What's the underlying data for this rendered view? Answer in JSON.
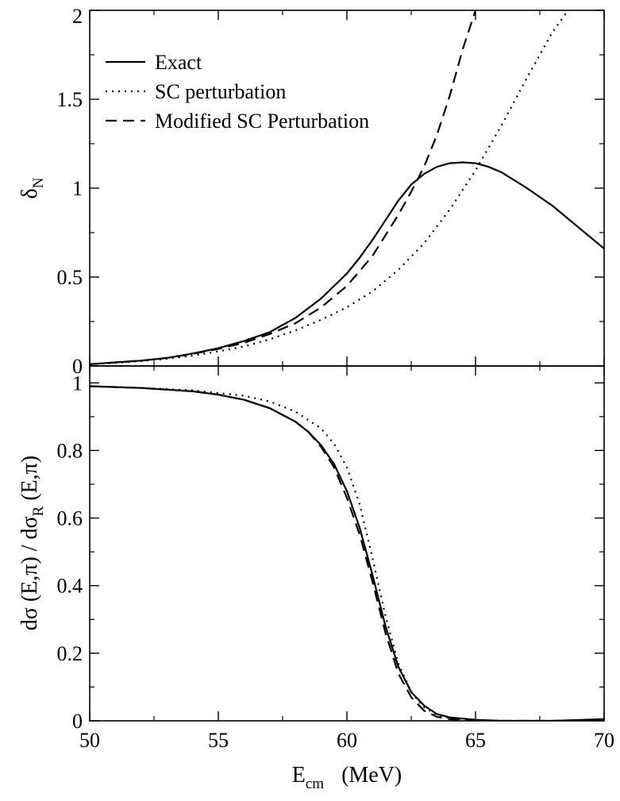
{
  "chart_data": [
    {
      "type": "line",
      "panel": "top",
      "xlabel": "",
      "ylabel": {
        "main": "δ",
        "sub": "N"
      },
      "xlim": [
        50,
        70
      ],
      "ylim": [
        0,
        2
      ],
      "yticks": [
        0,
        0.5,
        1,
        1.5,
        2
      ],
      "ytick_labels": [
        "0",
        "0.5",
        "1",
        "1.5",
        "2"
      ],
      "grid": false,
      "legend": {
        "placement": "top-left",
        "entries": [
          {
            "label": "Exact",
            "style": "solid"
          },
          {
            "label": "SC perturbation",
            "style": "dotted"
          },
          {
            "label": "Modified SC Perturbation",
            "style": "dashed"
          }
        ]
      },
      "series": [
        {
          "name": "Exact",
          "style": "solid",
          "x": [
            50,
            51,
            52,
            53,
            54,
            55,
            56,
            57,
            58,
            59,
            60,
            60.5,
            61,
            61.5,
            62,
            62.5,
            63,
            63.5,
            64,
            64.5,
            65,
            65.5,
            66,
            67,
            68,
            69,
            70
          ],
          "y": [
            0.01,
            0.02,
            0.03,
            0.045,
            0.07,
            0.1,
            0.14,
            0.19,
            0.27,
            0.38,
            0.52,
            0.61,
            0.71,
            0.82,
            0.93,
            1.02,
            1.08,
            1.12,
            1.14,
            1.145,
            1.14,
            1.12,
            1.09,
            1.0,
            0.9,
            0.78,
            0.66
          ]
        },
        {
          "name": "SC perturbation",
          "style": "dotted",
          "x": [
            50,
            51,
            52,
            53,
            54,
            55,
            56,
            57,
            58,
            59,
            60,
            61,
            62,
            63,
            64,
            65,
            66,
            67,
            68,
            68.6
          ],
          "y": [
            0.01,
            0.018,
            0.028,
            0.04,
            0.058,
            0.082,
            0.11,
            0.15,
            0.2,
            0.26,
            0.33,
            0.42,
            0.54,
            0.69,
            0.88,
            1.1,
            1.35,
            1.62,
            1.88,
            2.0
          ]
        },
        {
          "name": "Modified SC Perturbation",
          "style": "dashed",
          "x": [
            50,
            51,
            52,
            53,
            54,
            55,
            56,
            57,
            58,
            59,
            60,
            61,
            62,
            62.5,
            63,
            63.5,
            64,
            64.5,
            65
          ],
          "y": [
            0.01,
            0.02,
            0.03,
            0.045,
            0.068,
            0.096,
            0.13,
            0.18,
            0.24,
            0.33,
            0.45,
            0.62,
            0.85,
            0.98,
            1.12,
            1.3,
            1.52,
            1.78,
            2.0
          ]
        }
      ]
    },
    {
      "type": "line",
      "panel": "bottom",
      "xlabel": {
        "main": "E",
        "sub": "cm",
        "suffix": "(MeV)"
      },
      "ylabel": {
        "parts": [
          {
            "text": "dσ (E,π) / dσ",
            "sub": false
          },
          {
            "text": "R",
            "sub": true
          },
          {
            "text": " (E,π)",
            "sub": false
          }
        ]
      },
      "xlim": [
        50,
        70
      ],
      "ylim": [
        0,
        1.05
      ],
      "xticks": [
        50,
        55,
        60,
        65,
        70
      ],
      "xtick_labels": [
        "50",
        "55",
        "60",
        "65",
        "70"
      ],
      "yticks": [
        0,
        0.2,
        0.4,
        0.6,
        0.8,
        1
      ],
      "ytick_labels": [
        "0",
        "0.2",
        "0.4",
        "0.6",
        "0.8",
        "1"
      ],
      "grid": false,
      "series": [
        {
          "name": "Exact",
          "style": "solid",
          "x": [
            50,
            52,
            54,
            55,
            56,
            57,
            58,
            58.5,
            59,
            59.5,
            60,
            60.5,
            61,
            61.5,
            62,
            62.5,
            63,
            63.5,
            64,
            65,
            66,
            68,
            70
          ],
          "y": [
            0.99,
            0.985,
            0.975,
            0.965,
            0.95,
            0.925,
            0.885,
            0.855,
            0.815,
            0.76,
            0.68,
            0.57,
            0.43,
            0.28,
            0.16,
            0.085,
            0.045,
            0.02,
            0.01,
            0.003,
            0.0,
            0.0,
            0.005
          ]
        },
        {
          "name": "SC perturbation",
          "style": "dotted",
          "x": [
            50,
            52,
            54,
            56,
            57,
            58,
            59,
            59.5,
            60,
            60.5,
            61,
            61.5,
            62,
            62.5,
            63,
            63.5,
            64,
            65,
            66,
            68,
            70
          ],
          "y": [
            0.99,
            0.985,
            0.978,
            0.962,
            0.945,
            0.915,
            0.865,
            0.82,
            0.75,
            0.64,
            0.48,
            0.31,
            0.17,
            0.085,
            0.04,
            0.018,
            0.008,
            0.002,
            0.0,
            0.0,
            0.003
          ]
        },
        {
          "name": "Modified SC Perturbation",
          "style": "dashed",
          "x": [
            50,
            52,
            54,
            55,
            56,
            57,
            58,
            58.5,
            59,
            59.5,
            60,
            60.5,
            61,
            61.5,
            62,
            62.5,
            63,
            63.5,
            64,
            65,
            66,
            68,
            70
          ],
          "y": [
            0.99,
            0.985,
            0.975,
            0.965,
            0.95,
            0.925,
            0.885,
            0.855,
            0.81,
            0.75,
            0.66,
            0.55,
            0.41,
            0.26,
            0.14,
            0.07,
            0.03,
            0.012,
            0.005,
            0.001,
            0.0,
            0.0,
            0.002
          ]
        }
      ]
    }
  ]
}
